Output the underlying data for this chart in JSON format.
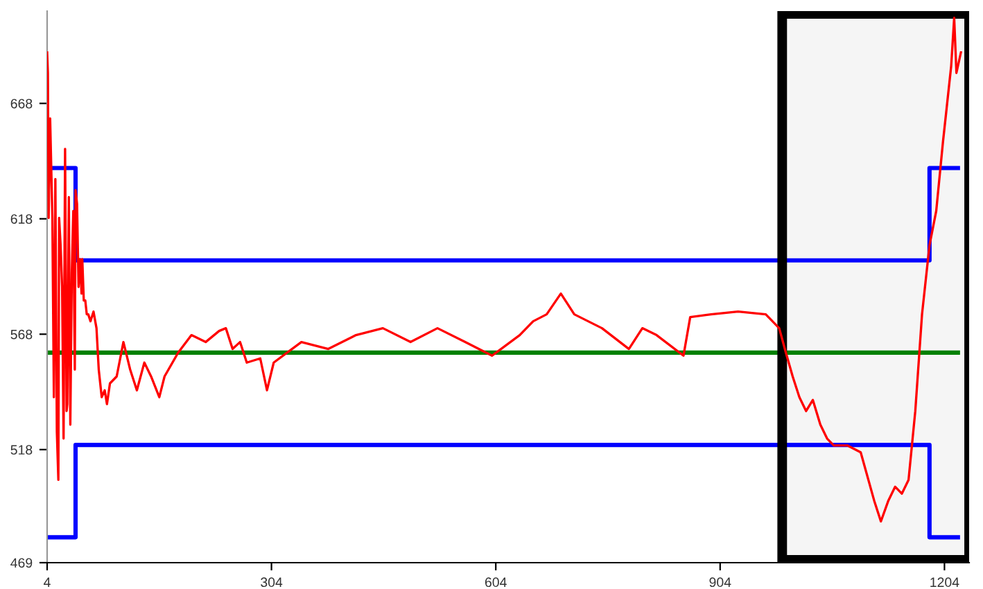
{
  "chart_data": {
    "type": "line",
    "xlim": [
      4,
      1237
    ],
    "ylim": [
      469,
      708
    ],
    "xticks": [
      4,
      304,
      604,
      904,
      1204
    ],
    "yticks": [
      469,
      518,
      568,
      618,
      668
    ],
    "grid": false,
    "legend": false,
    "series": [
      {
        "color": "#ff0000",
        "x": [
          4,
          5,
          6,
          8,
          11,
          13,
          15,
          17,
          19,
          20,
          22,
          24,
          26,
          28,
          30,
          31,
          33,
          35,
          37,
          39,
          41,
          42,
          44,
          46,
          48,
          50,
          51,
          53,
          55,
          57,
          59,
          62,
          66,
          70,
          73,
          77,
          81,
          84,
          88,
          97,
          106,
          115,
          124,
          134,
          143,
          154,
          161,
          179,
          197,
          216,
          234,
          243,
          252,
          262,
          271,
          289,
          298,
          307,
          344,
          380,
          417,
          453,
          490,
          526,
          563,
          599,
          636,
          654,
          672,
          691,
          709,
          746,
          782,
          800,
          819,
          855,
          864,
          892,
          928,
          965,
          983,
          992,
          1001,
          1010,
          1019,
          1028,
          1038,
          1047,
          1056,
          1074,
          1092,
          1110,
          1119,
          1129,
          1138,
          1147,
          1156,
          1165,
          1174,
          1184,
          1193,
          1202,
          1207,
          1213,
          1217,
          1220,
          1226
        ],
        "values": [
          690.1,
          681.2,
          618.4,
          661.5,
          618.4,
          540.7,
          635.2,
          525.8,
          504.9,
          618.4,
          606.5,
          588.5,
          522.8,
          648.3,
          534.7,
          537.7,
          627.4,
          528.8,
          594.5,
          621.4,
          552.7,
          630.4,
          624.4,
          588.5,
          600.5,
          585.6,
          600.5,
          582.6,
          582.6,
          576.6,
          576.6,
          573.6,
          577.8,
          570.6,
          552.7,
          540.7,
          543.7,
          537.7,
          546.7,
          549.7,
          564.6,
          552.7,
          543.7,
          555.7,
          549.7,
          540.7,
          549.7,
          559.9,
          567.6,
          564.6,
          569.4,
          570.6,
          561.6,
          564.6,
          555.7,
          557.5,
          543.7,
          555.7,
          564.6,
          561.6,
          567.6,
          570.6,
          564.6,
          570.6,
          564.6,
          558.7,
          567.6,
          573.6,
          576.6,
          585.6,
          576.6,
          570.6,
          561.6,
          570.6,
          567.6,
          558.7,
          575.4,
          576.6,
          577.8,
          576.6,
          570.6,
          559.9,
          549.7,
          540.7,
          534.7,
          539.5,
          528.8,
          522.8,
          519.8,
          519.8,
          516.8,
          495.9,
          486.9,
          495.9,
          501.9,
          498.9,
          504.9,
          534.7,
          576.6,
          606.5,
          621.4,
          651.3,
          666.2,
          684.2,
          705.1,
          681.2,
          690.1
        ]
      },
      {
        "type": "step",
        "color": "#0000ff",
        "x": [
          4,
          42,
          1184,
          1222
        ],
        "values": [
          640,
          600,
          640,
          640
        ]
      },
      {
        "type": "step",
        "color": "#0000ff",
        "x": [
          4,
          42,
          1184,
          1222
        ],
        "values": [
          480,
          520,
          480,
          480
        ]
      },
      {
        "color": "#008000",
        "x": [
          4,
          1222
        ],
        "values": [
          560,
          560
        ]
      }
    ],
    "bands": [
      {
        "axis": "x",
        "from": 987,
        "to": 1237,
        "color": "#000000"
      }
    ]
  }
}
